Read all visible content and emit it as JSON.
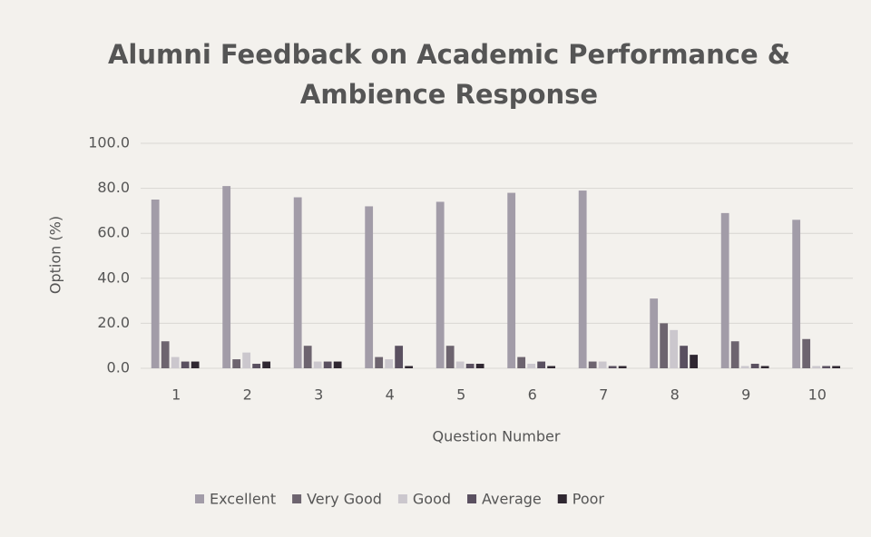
{
  "chart_data": {
    "type": "bar",
    "title": "Alumni Feedback on Academic Performance & Ambience Response",
    "x_label": "Question Number",
    "y_label": "Option (%)",
    "categories": [
      "1",
      "2",
      "3",
      "4",
      "5",
      "6",
      "7",
      "8",
      "9",
      "10"
    ],
    "series": [
      {
        "name": "Excellent",
        "color": "#a29ca8",
        "values": [
          75,
          81,
          76,
          72,
          74,
          78,
          79,
          31,
          69,
          66
        ]
      },
      {
        "name": "Very Good",
        "color": "#6d646f",
        "values": [
          12,
          4,
          10,
          5,
          10,
          5,
          3,
          20,
          12,
          13
        ]
      },
      {
        "name": "Good",
        "color": "#cbc7cd",
        "values": [
          5,
          7,
          3,
          4,
          3,
          2,
          3,
          17,
          1,
          1
        ]
      },
      {
        "name": "Average",
        "color": "#5a5060",
        "values": [
          3,
          2,
          3,
          10,
          2,
          3,
          1,
          10,
          2,
          1
        ]
      },
      {
        "name": "Poor",
        "color": "#2f2731",
        "values": [
          3,
          3,
          3,
          1,
          2,
          1,
          1,
          6,
          1,
          1
        ]
      }
    ],
    "ylim": [
      0,
      100
    ],
    "yticks": [
      {
        "value": 0,
        "label": "0.0"
      },
      {
        "value": 20,
        "label": "20.0"
      },
      {
        "value": 40,
        "label": "40.0"
      },
      {
        "value": 60,
        "label": "60.0"
      },
      {
        "value": 80,
        "label": "80.0"
      },
      {
        "value": 100,
        "label": "100.0"
      }
    ],
    "grid": true,
    "legend": "bottom"
  }
}
